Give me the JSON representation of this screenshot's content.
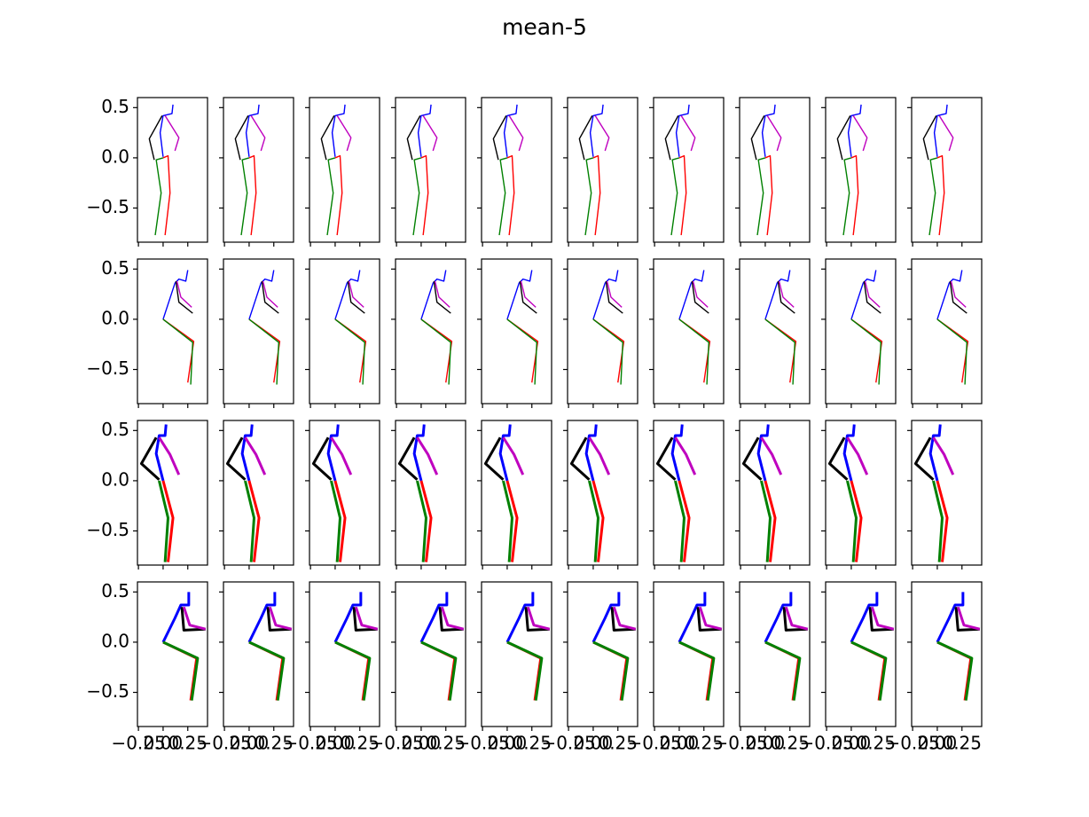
{
  "chart_data": {
    "type": "line",
    "title": "mean-5",
    "columns": 10,
    "xlim": [
      -0.26,
      0.45
    ],
    "ylim": [
      -0.84,
      0.6
    ],
    "xticks": [
      {
        "value": -0.25,
        "label": "−0.25"
      },
      {
        "value": 0,
        "label": "0.00"
      },
      0.25
    ],
    "yticks": [
      0.5,
      {
        "value": 0,
        "label": "0.0"
      },
      {
        "value": -0.5,
        "label": "−0.5"
      }
    ],
    "rows": [
      {
        "linewidth": 1.4,
        "series": [
          {
            "color": "#0000ff",
            "x": [
              0,
              -0.03,
              0,
              0.09,
              0.1
            ],
            "values": [
              0.01,
              0.25,
              0.42,
              0.44,
              0.53
            ]
          },
          {
            "color": "#000000",
            "x": [
              -0.01,
              -0.14,
              -0.09
            ],
            "values": [
              0.42,
              0.19,
              -0.02
            ]
          },
          {
            "color": "#bf00bf",
            "x": [
              0.02,
              0.16,
              0.12
            ],
            "values": [
              0.42,
              0.2,
              0.07
            ]
          },
          {
            "color": "#ff0000",
            "x": [
              0,
              0.05,
              0.07,
              0.02
            ],
            "values": [
              0,
              0.02,
              -0.35,
              -0.77
            ]
          },
          {
            "color": "#008000",
            "x": [
              0,
              -0.07,
              -0.02,
              -0.08
            ],
            "values": [
              0,
              -0.02,
              -0.35,
              -0.77
            ]
          }
        ]
      },
      {
        "linewidth": 1.4,
        "series": [
          {
            "color": "#0000ff",
            "x": [
              0,
              0.12,
              0.16,
              0.23,
              0.25
            ],
            "values": [
              0,
              0.36,
              0.4,
              0.38,
              0.49
            ]
          },
          {
            "color": "#000000",
            "x": [
              0.13,
              0.16,
              0.3
            ],
            "values": [
              0.38,
              0.17,
              0.06
            ]
          },
          {
            "color": "#bf00bf",
            "x": [
              0.14,
              0.18,
              0.29
            ],
            "values": [
              0.38,
              0.22,
              0.12
            ]
          },
          {
            "color": "#ff0000",
            "x": [
              0,
              0.31,
              0.25
            ],
            "values": [
              0,
              -0.22,
              -0.63
            ]
          },
          {
            "color": "#008000",
            "x": [
              0,
              0.3,
              0.28
            ],
            "values": [
              0,
              -0.23,
              -0.65
            ]
          }
        ]
      },
      {
        "linewidth": 3,
        "series": [
          {
            "color": "#0000ff",
            "x": [
              0,
              -0.07,
              -0.04,
              0.02,
              0.03
            ],
            "values": [
              0,
              0.27,
              0.45,
              0.45,
              0.56
            ]
          },
          {
            "color": "#000000",
            "x": [
              -0.07,
              -0.22,
              -0.04
            ],
            "values": [
              0.43,
              0.17,
              0.01
            ]
          },
          {
            "color": "#bf00bf",
            "x": [
              -0.04,
              0.07,
              0.16
            ],
            "values": [
              0.43,
              0.26,
              0.06
            ]
          },
          {
            "color": "#ff0000",
            "x": [
              0,
              0.1,
              0.05
            ],
            "values": [
              0,
              -0.37,
              -0.81
            ]
          },
          {
            "color": "#008000",
            "x": [
              -0.04,
              0.05,
              0.02
            ],
            "values": [
              0,
              -0.37,
              -0.81
            ]
          }
        ]
      },
      {
        "linewidth": 3,
        "series": [
          {
            "color": "#0000ff",
            "x": [
              0,
              0.12,
              0.18,
              0.26,
              0.26
            ],
            "values": [
              0,
              0.24,
              0.37,
              0.37,
              0.5
            ]
          },
          {
            "color": "#000000",
            "x": [
              0.19,
              0.21,
              0.43
            ],
            "values": [
              0.35,
              0.12,
              0.13
            ]
          },
          {
            "color": "#bf00bf",
            "x": [
              0.21,
              0.27,
              0.43
            ],
            "values": [
              0.35,
              0.17,
              0.13
            ]
          },
          {
            "color": "#ff0000",
            "x": [
              0,
              0.34,
              0.28
            ],
            "values": [
              0,
              -0.16,
              -0.58
            ]
          },
          {
            "color": "#008000",
            "x": [
              0,
              0.35,
              0.29
            ],
            "values": [
              0,
              -0.16,
              -0.58
            ]
          }
        ]
      }
    ]
  }
}
